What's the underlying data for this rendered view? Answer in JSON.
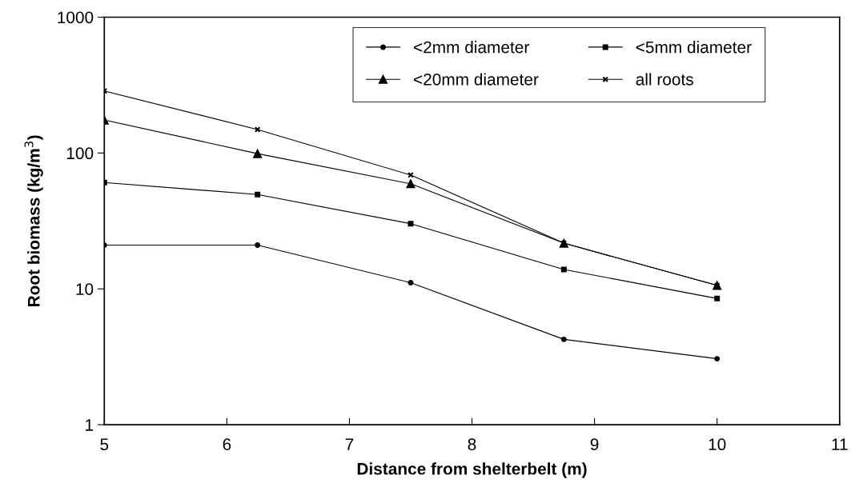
{
  "chart_data": {
    "type": "line",
    "xlabel": "Distance from shelterbelt (m)",
    "ylabel": "Root biomass (kg/m$^{3}$)",
    "x": [
      5,
      6.25,
      7.5,
      8.75,
      10
    ],
    "series": [
      {
        "name": "<2mm diameter",
        "color": "#000000",
        "marker": "circle",
        "values": [
          21,
          21,
          11.1,
          4.25,
          3.06
        ]
      },
      {
        "name": "<5mm diameter",
        "color": "#000000",
        "marker": "square",
        "values": [
          60.7,
          49.5,
          30.2,
          13.9,
          8.5
        ]
      },
      {
        "name": "<20mm diameter",
        "color": "#000000",
        "marker": "triangle",
        "values": [
          175,
          99,
          59.4,
          21.7,
          10.6
        ]
      },
      {
        "name": "all roots",
        "color": "#000000",
        "marker": "cross",
        "values": [
          286,
          149,
          68.9,
          21.7,
          10.6
        ]
      }
    ],
    "log": "y",
    "xlim": [
      5,
      11
    ],
    "xticks": [
      5,
      6,
      7,
      8,
      9,
      10,
      11
    ],
    "ylim": [
      1,
      1000
    ],
    "yticks": [
      1,
      10,
      100,
      1000
    ],
    "grid": false,
    "legend": "top right",
    "line_style": "solid"
  }
}
